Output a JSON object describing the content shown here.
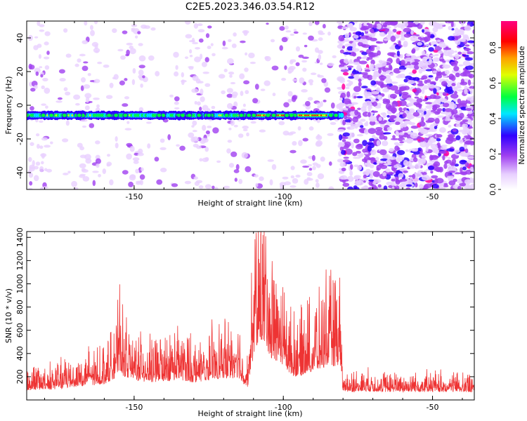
{
  "figure": {
    "title": "C2E5.2023.346.03.54.R12"
  },
  "chart_data": [
    {
      "type": "heatmap",
      "xlabel": "Height of straight line (km)",
      "ylabel": "Frequency (Hz)",
      "xlim": [
        -186,
        -36
      ],
      "ylim": [
        -50,
        50
      ],
      "x_ticks": [
        -150,
        -100,
        -50
      ],
      "y_ticks": [
        -40,
        -20,
        0,
        20,
        40
      ],
      "colorbar": {
        "label": "Normalized spectral amplitude",
        "range": [
          0,
          0.95
        ],
        "ticks": [
          0,
          0.2,
          0.4,
          0.6,
          0.8
        ],
        "tick_labels": [
          "0.0",
          "0.2",
          "0.4",
          "0.6",
          "0.8"
        ],
        "colormap": [
          "#ffffff",
          "#e8d0ff",
          "#a040f0",
          "#3000ff",
          "#00e8ff",
          "#00ff40",
          "#e0ff00",
          "#ffa000",
          "#ff0000",
          "#ff0080"
        ]
      },
      "band": {
        "frequency_hz": -6,
        "x_start_km": -186,
        "x_end_km": -80,
        "peak_region_km": [
          -115,
          -85
        ]
      },
      "noise_region_km": [
        -81,
        -36
      ],
      "grid": false
    },
    {
      "type": "line",
      "xlabel": "Height of straight line (km)",
      "ylabel": "SNR (10 * v/v)",
      "xlim": [
        -186,
        -36
      ],
      "ylim": [
        0,
        1450
      ],
      "x_ticks": [
        -150,
        -100,
        -50
      ],
      "y_ticks": [
        200,
        400,
        600,
        800,
        1000,
        1200,
        1400
      ],
      "line_color": "#ee3333",
      "grid": false,
      "envelope": {
        "x": [
          -186,
          -175,
          -170,
          -165,
          -160,
          -156,
          -155,
          -154,
          -150,
          -145,
          -140,
          -135,
          -130,
          -125,
          -120,
          -115,
          -112,
          -110,
          -108,
          -106,
          -104,
          -102,
          -100,
          -98,
          -96,
          -94,
          -92,
          -90,
          -88,
          -85,
          -83,
          -81,
          -80,
          -75,
          -70,
          -60,
          -50,
          -40,
          -36
        ],
        "y": [
          210,
          230,
          280,
          300,
          340,
          480,
          680,
          520,
          420,
          370,
          400,
          430,
          370,
          430,
          460,
          470,
          250,
          950,
          1300,
          1150,
          880,
          820,
          750,
          550,
          500,
          520,
          580,
          600,
          620,
          760,
          720,
          760,
          170,
          180,
          175,
          170,
          170,
          170,
          170
        ]
      }
    }
  ]
}
